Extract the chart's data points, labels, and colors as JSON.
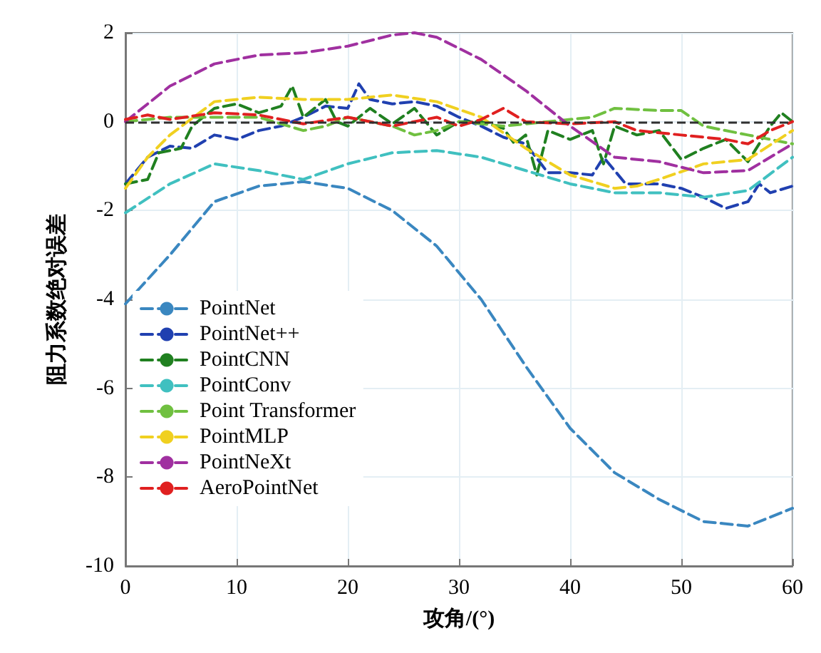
{
  "chart_data": {
    "type": "line",
    "xlabel": "攻角/(°)",
    "ylabel": "阻力系数绝对误差",
    "xlim": [
      0,
      60
    ],
    "ylim": [
      -10,
      2
    ],
    "xticks": [
      0,
      10,
      20,
      30,
      40,
      50,
      60
    ],
    "yticks": [
      -10,
      -8,
      -6,
      -4,
      -2,
      0,
      2
    ],
    "grid": true,
    "legend": "bottom left",
    "marker": "none",
    "line_style": "dashed",
    "ref_lines": [
      {
        "axis": "y",
        "value": 0,
        "color": "#303030",
        "line_style": "dashed"
      }
    ],
    "series": [
      {
        "name": "PointNet",
        "color": "#3a87c0",
        "x": [
          0,
          4,
          8,
          12,
          16,
          20,
          24,
          28,
          32,
          36,
          40,
          44,
          48,
          52,
          56,
          60
        ],
        "values": [
          -4.1,
          -3.0,
          -1.8,
          -1.45,
          -1.35,
          -1.5,
          -2.0,
          -2.8,
          -4.0,
          -5.5,
          -6.9,
          -7.9,
          -8.5,
          -9.0,
          -9.1,
          -8.7
        ]
      },
      {
        "name": "PointNet++",
        "color": "#2040b0",
        "x": [
          0,
          2,
          4,
          6,
          8,
          10,
          12,
          14,
          16,
          18,
          20,
          21,
          22,
          24,
          26,
          28,
          30,
          32,
          34,
          36,
          38,
          40,
          42,
          43,
          45,
          48,
          50,
          52,
          54,
          56,
          57,
          58,
          60
        ],
        "values": [
          -1.4,
          -0.8,
          -0.55,
          -0.6,
          -0.3,
          -0.4,
          -0.2,
          -0.1,
          0.1,
          0.35,
          0.3,
          0.85,
          0.5,
          0.4,
          0.45,
          0.35,
          0.1,
          -0.1,
          -0.35,
          -0.5,
          -1.15,
          -1.15,
          -1.2,
          -0.8,
          -1.4,
          -1.4,
          -1.5,
          -1.7,
          -1.95,
          -1.8,
          -1.4,
          -1.6,
          -1.45
        ]
      },
      {
        "name": "PointCNN",
        "color": "#208020",
        "x": [
          0,
          2,
          3,
          5,
          6,
          8,
          10,
          12,
          14,
          15,
          16,
          18,
          19,
          20,
          22,
          24,
          26,
          28,
          30,
          32,
          34,
          35,
          36,
          37,
          38,
          40,
          42,
          43,
          44,
          46,
          48,
          50,
          52,
          54,
          56,
          58,
          59,
          60
        ],
        "values": [
          -1.4,
          -1.3,
          -0.7,
          -0.6,
          -0.1,
          0.3,
          0.4,
          0.2,
          0.35,
          0.8,
          0.1,
          0.5,
          0.0,
          -0.1,
          0.3,
          -0.05,
          0.3,
          -0.3,
          0.0,
          0.0,
          -0.15,
          -0.5,
          -0.3,
          -1.2,
          -0.2,
          -0.4,
          -0.2,
          -0.95,
          -0.1,
          -0.3,
          -0.2,
          -0.85,
          -0.6,
          -0.4,
          -0.9,
          -0.1,
          0.2,
          0.0
        ]
      },
      {
        "name": "PointConv",
        "color": "#40c0c0",
        "x": [
          0,
          4,
          8,
          12,
          16,
          20,
          24,
          28,
          32,
          36,
          40,
          44,
          48,
          52,
          56,
          60
        ],
        "values": [
          -2.05,
          -1.4,
          -0.95,
          -1.1,
          -1.3,
          -0.95,
          -0.7,
          -0.65,
          -0.8,
          -1.1,
          -1.4,
          -1.6,
          -1.6,
          -1.7,
          -1.55,
          -0.8
        ]
      },
      {
        "name": "Point Transformer",
        "color": "#70c040",
        "x": [
          0,
          4,
          8,
          12,
          16,
          18,
          20,
          24,
          26,
          28,
          30,
          34,
          38,
          42,
          44,
          48,
          50,
          52,
          56,
          60
        ],
        "values": [
          0.0,
          0.1,
          0.1,
          0.1,
          -0.2,
          -0.1,
          0.1,
          -0.1,
          -0.3,
          -0.2,
          0.0,
          -0.1,
          0.0,
          0.1,
          0.3,
          0.25,
          0.25,
          -0.1,
          -0.3,
          -0.5
        ]
      },
      {
        "name": "PointMLP",
        "color": "#f0d020",
        "x": [
          0,
          2,
          4,
          8,
          12,
          16,
          20,
          24,
          28,
          32,
          36,
          40,
          44,
          46,
          48,
          52,
          56,
          60
        ],
        "values": [
          -1.5,
          -0.8,
          -0.3,
          0.45,
          0.55,
          0.5,
          0.5,
          0.6,
          0.45,
          0.1,
          -0.6,
          -1.2,
          -1.5,
          -1.45,
          -1.3,
          -0.95,
          -0.85,
          -0.2
        ]
      },
      {
        "name": "PointNeXt",
        "color": "#a030a0",
        "x": [
          0,
          2,
          4,
          8,
          12,
          16,
          20,
          24,
          26,
          28,
          32,
          36,
          40,
          44,
          48,
          52,
          56,
          60
        ],
        "values": [
          0.0,
          0.4,
          0.8,
          1.3,
          1.5,
          1.55,
          1.7,
          1.95,
          2.0,
          1.9,
          1.4,
          0.7,
          -0.1,
          -0.8,
          -0.9,
          -1.15,
          -1.1,
          -0.5
        ]
      },
      {
        "name": "AeroPointNet",
        "color": "#e02020",
        "x": [
          0,
          2,
          4,
          8,
          12,
          16,
          20,
          24,
          28,
          30,
          32,
          34,
          36,
          40,
          44,
          46,
          50,
          54,
          56,
          58,
          60
        ],
        "values": [
          0.05,
          0.15,
          0.05,
          0.2,
          0.15,
          -0.05,
          0.1,
          -0.1,
          0.1,
          -0.1,
          0.05,
          0.3,
          0.0,
          -0.05,
          0.0,
          -0.2,
          -0.3,
          -0.4,
          -0.5,
          -0.2,
          0.0
        ]
      }
    ]
  }
}
